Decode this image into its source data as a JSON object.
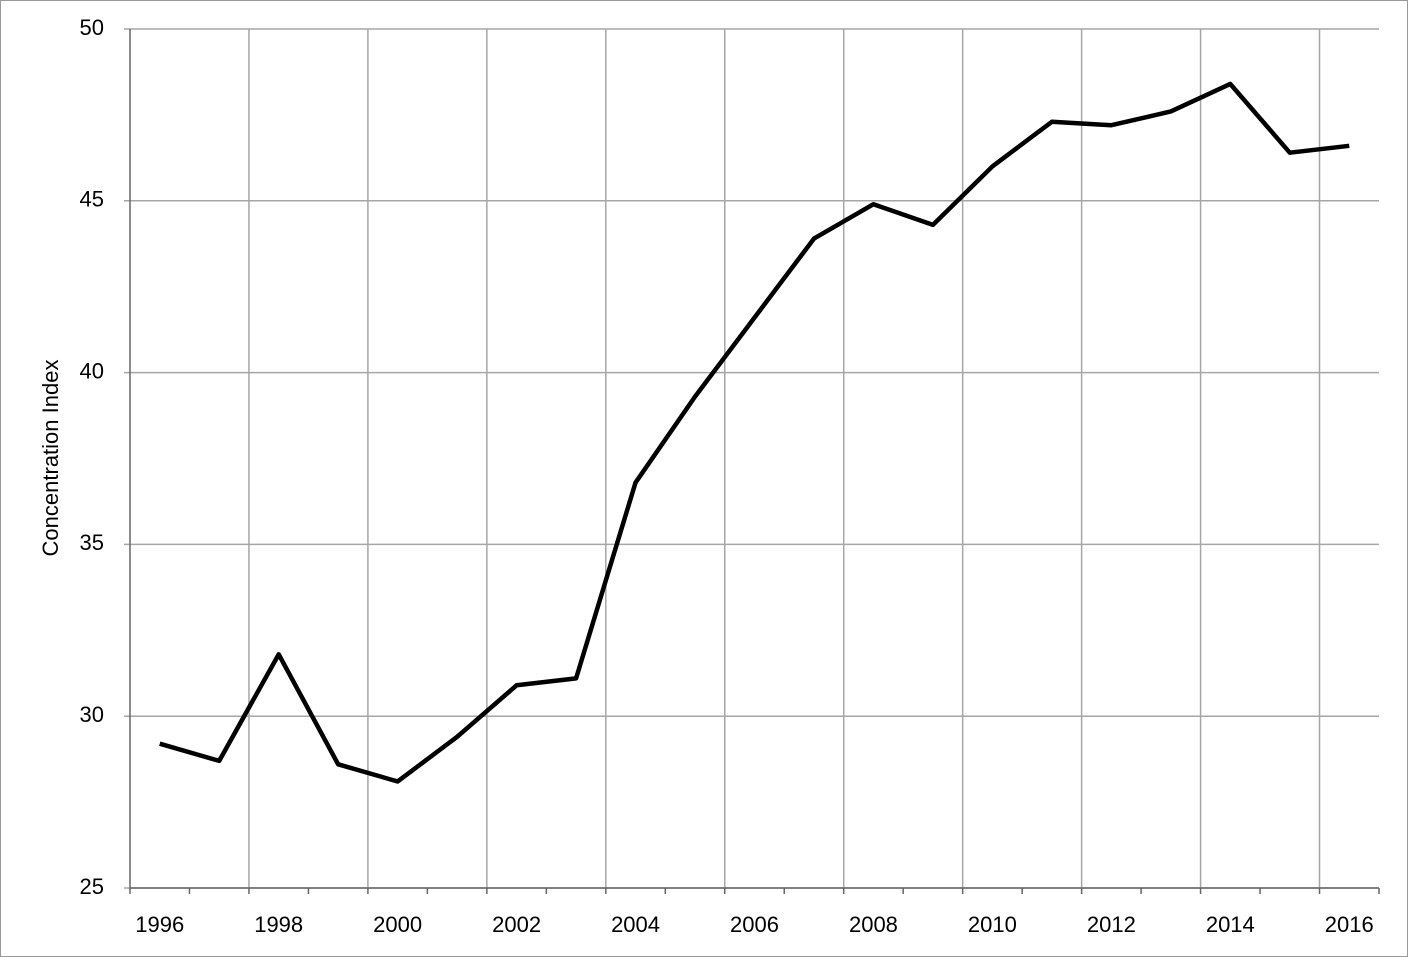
{
  "chart_data": {
    "type": "line",
    "y_label": "Concentration Index",
    "categories": [
      "1996",
      null,
      "1998",
      null,
      "2000",
      null,
      "2002",
      null,
      "2004",
      null,
      "2006",
      null,
      "2008",
      null,
      "2010",
      null,
      "2012",
      null,
      "2014",
      null,
      "2016"
    ],
    "series": [
      {
        "color": "#000000",
        "values": [
          29.2,
          28.7,
          31.8,
          28.6,
          28.1,
          29.4,
          30.9,
          31.1,
          36.8,
          39.3,
          41.6,
          43.9,
          44.9,
          44.3,
          46.0,
          47.3,
          47.2,
          47.6,
          48.4,
          46.4,
          46.6
        ]
      }
    ],
    "ylim": [
      25,
      50
    ],
    "yticks": [
      25,
      30,
      35,
      40,
      45,
      50
    ],
    "grid": true
  }
}
